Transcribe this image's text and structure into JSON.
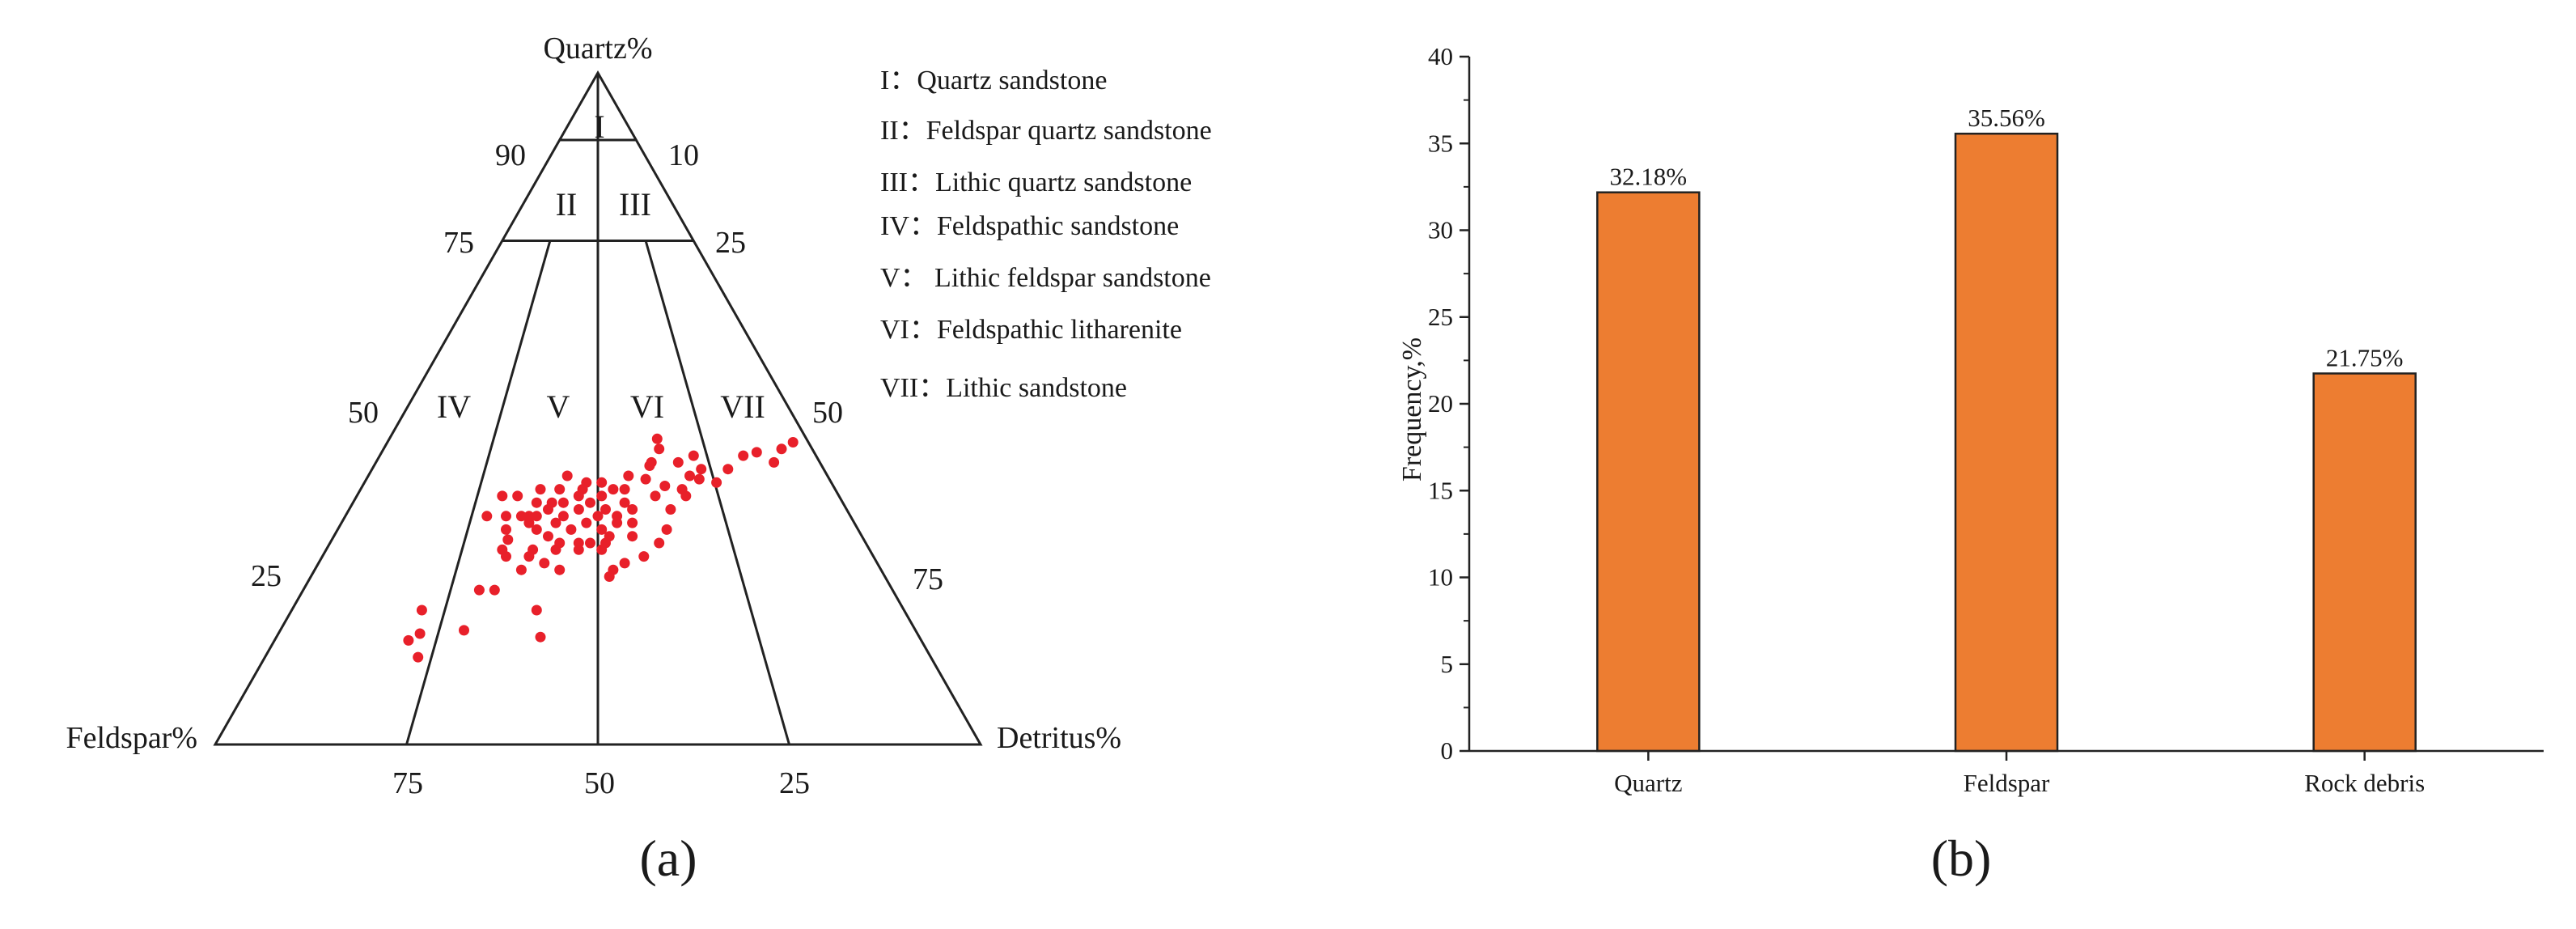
{
  "panel_a": {
    "label": "(a)",
    "apex_labels": {
      "top": "Quartz%",
      "left": "Feldspar%",
      "right": "Detritus%"
    },
    "left_edge_ticks": [
      {
        "label": "90",
        "value": 90
      },
      {
        "label": "75",
        "value": 75
      },
      {
        "label": "50",
        "value": 50
      },
      {
        "label": "25",
        "value": 25
      }
    ],
    "right_edge_ticks": [
      {
        "label": "10",
        "value": 10
      },
      {
        "label": "25",
        "value": 25
      },
      {
        "label": "50",
        "value": 50
      },
      {
        "label": "75",
        "value": 75
      }
    ],
    "bottom_edge_ticks": [
      {
        "label": "75",
        "value": 75
      },
      {
        "label": "50",
        "value": 50
      },
      {
        "label": "25",
        "value": 25
      }
    ],
    "legend": [
      "I：Quartz sandstone",
      "II：Feldspar quartz sandstone",
      "III：Lithic quartz sandstone",
      "IV：Feldspathic sandstone",
      "V： Lithic feldspar sandstone",
      "VI：Feldspathic litharenite",
      "VII：Lithic sandstone"
    ],
    "regions": [
      "I",
      "II",
      "III",
      "IV",
      "V",
      "VI",
      "VII"
    ],
    "point_color": "#e8202a"
  },
  "panel_b": {
    "label": "(b)",
    "bar_color": "#ed7d31",
    "ylabel": "Frequency,%"
  },
  "chart_data": [
    {
      "type": "scatter",
      "subtype": "ternary",
      "axes": {
        "top": "Quartz%",
        "left": "Feldspar%",
        "right": "Detritus%"
      },
      "points_Q_F": [
        [
          45.0,
          2.0
        ],
        [
          44.0,
          4.0
        ],
        [
          42.0,
          6.0
        ],
        [
          43.5,
          7.5
        ],
        [
          43.0,
          9.5
        ],
        [
          41.0,
          12.5
        ],
        [
          39.0,
          15.0
        ],
        [
          41.0,
          16.0
        ],
        [
          40.0,
          18.0
        ],
        [
          38.0,
          20.0
        ],
        [
          42.0,
          22.0
        ],
        [
          39.5,
          24.0
        ],
        [
          44.0,
          20.0
        ],
        [
          45.5,
          19.5
        ],
        [
          42.0,
          18.5
        ],
        [
          37.0,
          24.0
        ],
        [
          40.0,
          26.0
        ],
        [
          38.0,
          27.5
        ],
        [
          38.0,
          29.0
        ],
        [
          36.0,
          28.5
        ],
        [
          39.0,
          30.0
        ],
        [
          37.0,
          31.0
        ],
        [
          35.0,
          31.5
        ],
        [
          39.0,
          32.0
        ],
        [
          36.0,
          33.0
        ],
        [
          34.0,
          33.0
        ],
        [
          37.0,
          34.0
        ],
        [
          35.0,
          35.0
        ],
        [
          33.0,
          35.0
        ],
        [
          38.0,
          36.0
        ],
        [
          36.0,
          36.5
        ],
        [
          34.0,
          37.5
        ],
        [
          32.0,
          37.5
        ],
        [
          30.0,
          37.5
        ],
        [
          33.0,
          39.0
        ],
        [
          30.0,
          40.0
        ],
        [
          29.0,
          41.0
        ],
        [
          32.0,
          42.0
        ],
        [
          37.0,
          42.0
        ],
        [
          36.0,
          40.0
        ],
        [
          38.0,
          38.5
        ],
        [
          29.0,
          44.0
        ],
        [
          28.0,
          45.0
        ],
        [
          37.0,
          44.0
        ],
        [
          29.0,
          38.0
        ],
        [
          34.0,
          41.0
        ],
        [
          30.0,
          36.0
        ],
        [
          34.0,
          43.0
        ],
        [
          32.0,
          46.0
        ],
        [
          31.0,
          30.0
        ],
        [
          33.0,
          29.0
        ],
        [
          35.0,
          28.0
        ],
        [
          31.0,
          33.0
        ],
        [
          28.0,
          48.0
        ],
        [
          23.0,
          52.0
        ],
        [
          23.0,
          54.0
        ],
        [
          34.0,
          45.0
        ],
        [
          36.0,
          38.0
        ],
        [
          38.0,
          33.0
        ],
        [
          32.0,
          33.5
        ],
        [
          30.0,
          34.0
        ],
        [
          33.0,
          31.0
        ],
        [
          34.0,
          30.5
        ],
        [
          35.0,
          39.0
        ],
        [
          26.0,
          47.0
        ],
        [
          20.0,
          48.0
        ],
        [
          34.0,
          47.5
        ],
        [
          30.5,
          46.5
        ],
        [
          17.0,
          59.0
        ],
        [
          16.5,
          65.0
        ],
        [
          20.0,
          63.0
        ],
        [
          15.5,
          67.0
        ],
        [
          13.0,
          67.0
        ],
        [
          16.0,
          49.5
        ],
        [
          29.0,
          48.0
        ],
        [
          34.0,
          42.0
        ],
        [
          33.0,
          42.5
        ],
        [
          26.0,
          42.0
        ],
        [
          27.0,
          43.5
        ],
        [
          41.5,
          22.5
        ],
        [
          43.0,
          16.0
        ],
        [
          38.5,
          22.0
        ],
        [
          39.5,
          17.0
        ],
        [
          37.0,
          20.0
        ],
        [
          35.0,
          23.0
        ],
        [
          32.0,
          25.0
        ],
        [
          30.0,
          27.0
        ],
        [
          28.0,
          30.0
        ],
        [
          27.0,
          33.0
        ],
        [
          26.0,
          35.0
        ],
        [
          25.0,
          36.0
        ],
        [
          31.0,
          41.0
        ],
        [
          29.0,
          35.0
        ],
        [
          40.0,
          34.0
        ]
      ]
    },
    {
      "type": "bar",
      "categories": [
        "Quartz",
        "Feldspar",
        "Rock debris"
      ],
      "values": [
        32.18,
        35.56,
        21.75
      ],
      "data_labels": [
        "32.18%",
        "35.56%",
        "21.75%"
      ],
      "ylabel": "Frequency,%",
      "ylim": [
        0,
        40
      ],
      "yticks": [
        0,
        5,
        10,
        15,
        20,
        25,
        30,
        35,
        40
      ],
      "legend": "none",
      "grid": false
    }
  ]
}
